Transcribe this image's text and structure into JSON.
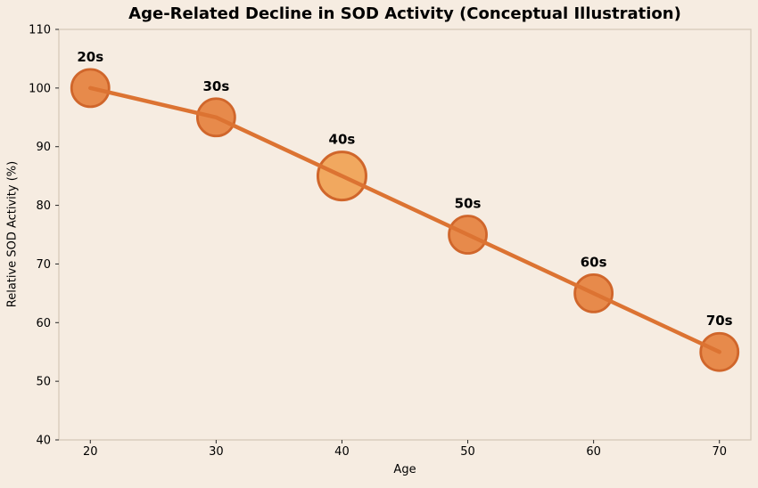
{
  "chart_data": {
    "type": "line",
    "title": "Age-Related Decline in SOD Activity (Conceptual Illustration)",
    "xlabel": "Age",
    "ylabel": "Relative SOD Activity (%)",
    "x": [
      20,
      30,
      40,
      50,
      60,
      70
    ],
    "values": [
      100,
      95,
      85,
      75,
      65,
      55
    ],
    "point_labels": [
      "20s",
      "30s",
      "40s",
      "50s",
      "60s",
      "70s"
    ],
    "highlight_index": 2,
    "xlim": [
      17.5,
      72.5
    ],
    "ylim": [
      40,
      110
    ],
    "xticks": [
      20,
      30,
      40,
      50,
      60,
      70
    ],
    "yticks": [
      40,
      50,
      60,
      70,
      80,
      90,
      100,
      110
    ],
    "grid": false,
    "legend": null,
    "marker_radius": 21,
    "highlight_radius": 27,
    "line_width": 4.5,
    "colors": {
      "background": "#f6ece1",
      "plot_border": "#d6c9b9",
      "line": "#dc7332",
      "marker_fill": "#e78a4b",
      "marker_edge": "#d0662b",
      "highlight_fill": "#f1a85f",
      "text": "#000000",
      "tick": "#262626"
    }
  }
}
